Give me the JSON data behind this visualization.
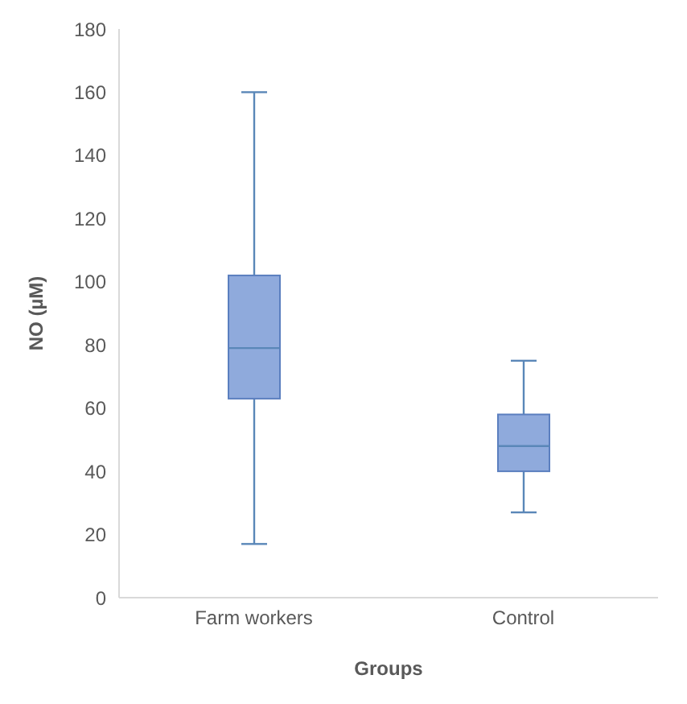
{
  "chart_data": {
    "type": "box",
    "xlabel": "Groups",
    "ylabel": "NO (µM)",
    "categories": [
      "Farm workers",
      "Control"
    ],
    "color": "#8faadc",
    "ylim": [
      0,
      180
    ],
    "yticks": [
      0,
      20,
      40,
      60,
      80,
      100,
      120,
      140,
      160,
      180
    ],
    "grid": false,
    "legend": false,
    "boxes": [
      {
        "low": 17,
        "q1": 63,
        "median": 79,
        "q3": 102,
        "high": 160
      },
      {
        "low": 27,
        "q1": 40,
        "median": 48,
        "q3": 58,
        "high": 75
      }
    ]
  }
}
